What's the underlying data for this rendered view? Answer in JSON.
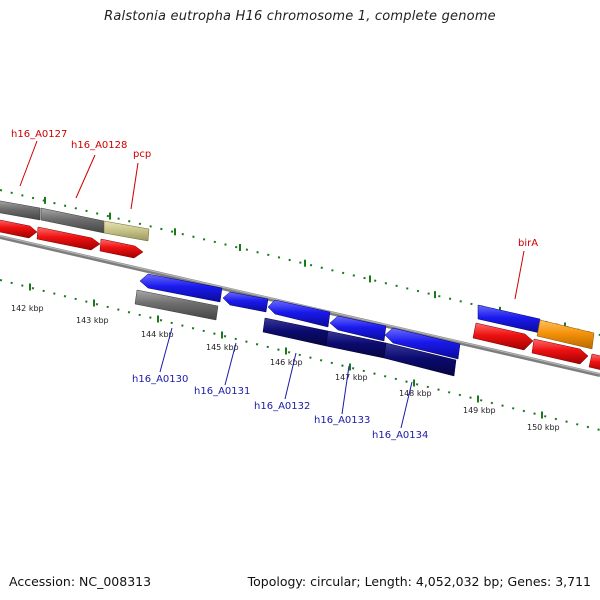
{
  "title": "Ralstonia eutropha H16 chromosome 1, complete genome",
  "footer": {
    "accession": "Accession: NC_008313",
    "summary": "Topology: circular; Length: 4,052,032 bp; Genes: 3,711"
  },
  "scale": {
    "positions": [
      "142 kbp",
      "143 kbp",
      "144 kbp",
      "145 kbp",
      "146 kbp",
      "147 kbp",
      "148 kbp",
      "149 kbp",
      "150 kbp"
    ]
  },
  "labels": {
    "top": [
      "h16_A0127",
      "h16_A0128",
      "pcp",
      "birA"
    ],
    "bottom": [
      "h16_A0130",
      "h16_A0131",
      "h16_A0132",
      "h16_A0133",
      "h16_A0134"
    ]
  },
  "colors": {
    "forward_label": "#cc0000",
    "reverse_label": "#1a1aa8",
    "tick": "#1a7a1a",
    "backbone": "#8a8a8a",
    "cds_red": "#ee1111",
    "cds_blue": "#1a1aee",
    "cds_navy": "#0b0b72",
    "cds_grey": "#6e6e6e",
    "cds_khaki": "#c8c58a",
    "cds_orange": "#f5930a"
  }
}
